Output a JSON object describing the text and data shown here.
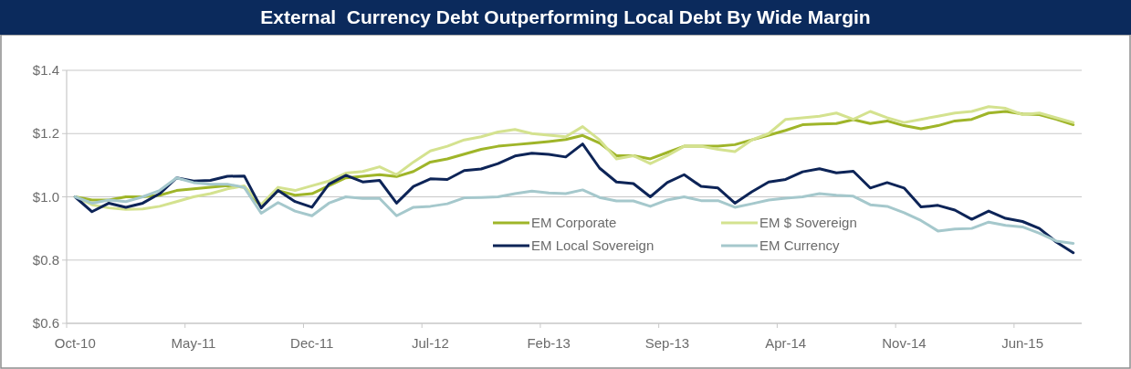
{
  "chart_data": {
    "type": "line",
    "title": "External  Currency Debt Outperforming Local Debt By Wide Margin",
    "categories": [
      "Oct-10",
      null,
      null,
      null,
      null,
      null,
      null,
      "May-11",
      null,
      null,
      null,
      null,
      null,
      null,
      "Dec-11",
      null,
      null,
      null,
      null,
      null,
      null,
      "Jul-12",
      null,
      null,
      null,
      null,
      null,
      null,
      "Feb-13",
      null,
      null,
      null,
      null,
      null,
      null,
      "Sep-13",
      null,
      null,
      null,
      null,
      null,
      null,
      "Apr-14",
      null,
      null,
      null,
      null,
      null,
      null,
      "Nov-14",
      null,
      null,
      null,
      null,
      null,
      null,
      "Jun-15",
      null,
      null,
      null
    ],
    "series": [
      {
        "name": "EM Corporate",
        "color": "#9fb529",
        "values": [
          1.0,
          0.99,
          0.99,
          1.0,
          1.0,
          1.005,
          1.02,
          1.025,
          1.03,
          1.035,
          1.03,
          0.97,
          1.02,
          1.005,
          1.01,
          1.035,
          1.06,
          1.065,
          1.07,
          1.064,
          1.08,
          1.11,
          1.12,
          1.135,
          1.15,
          1.16,
          1.165,
          1.17,
          1.175,
          1.181,
          1.194,
          1.17,
          1.13,
          1.13,
          1.12,
          1.14,
          1.16,
          1.16,
          1.16,
          1.165,
          1.18,
          1.195,
          1.21,
          1.228,
          1.23,
          1.232,
          1.244,
          1.232,
          1.24,
          1.225,
          1.215,
          1.225,
          1.24,
          1.245,
          1.265,
          1.27,
          1.262,
          1.26,
          1.245,
          1.228
        ]
      },
      {
        "name": "EM $ Sovereign",
        "color": "#d4e28f",
        "values": [
          1.0,
          0.975,
          0.965,
          0.96,
          0.962,
          0.97,
          0.985,
          1.0,
          1.01,
          1.025,
          1.035,
          0.975,
          1.03,
          1.02,
          1.035,
          1.05,
          1.075,
          1.08,
          1.095,
          1.07,
          1.11,
          1.145,
          1.16,
          1.18,
          1.19,
          1.205,
          1.213,
          1.2,
          1.195,
          1.19,
          1.222,
          1.18,
          1.12,
          1.13,
          1.105,
          1.13,
          1.16,
          1.16,
          1.15,
          1.143,
          1.18,
          1.2,
          1.245,
          1.25,
          1.255,
          1.265,
          1.245,
          1.27,
          1.25,
          1.235,
          1.245,
          1.255,
          1.265,
          1.27,
          1.285,
          1.28,
          1.26,
          1.265,
          1.25,
          1.235
        ]
      },
      {
        "name": "EM Local Sovereign",
        "color": "#0d2457",
        "values": [
          1.0,
          0.953,
          0.98,
          0.967,
          0.98,
          1.01,
          1.06,
          1.05,
          1.052,
          1.065,
          1.066,
          0.965,
          1.02,
          0.985,
          0.967,
          1.04,
          1.068,
          1.047,
          1.052,
          0.98,
          1.033,
          1.057,
          1.055,
          1.083,
          1.088,
          1.105,
          1.129,
          1.138,
          1.134,
          1.126,
          1.167,
          1.091,
          1.047,
          1.042,
          1.0,
          1.045,
          1.07,
          1.033,
          1.028,
          0.98,
          1.016,
          1.047,
          1.055,
          1.079,
          1.089,
          1.076,
          1.081,
          1.028,
          1.045,
          1.028,
          0.968,
          0.973,
          0.958,
          0.929,
          0.955,
          0.932,
          0.922,
          0.9,
          0.857,
          0.823
        ]
      },
      {
        "name": "EM Currency",
        "color": "#a5c8cc",
        "values": [
          1.0,
          0.98,
          0.99,
          0.985,
          1.0,
          1.02,
          1.06,
          1.045,
          1.04,
          1.04,
          1.03,
          0.948,
          0.982,
          0.955,
          0.94,
          0.98,
          1.0,
          0.995,
          0.995,
          0.94,
          0.967,
          0.97,
          0.978,
          0.997,
          0.998,
          1.0,
          1.01,
          1.018,
          1.012,
          1.01,
          1.022,
          0.998,
          0.987,
          0.987,
          0.97,
          0.99,
          1.0,
          0.988,
          0.988,
          0.967,
          0.978,
          0.99,
          0.996,
          1.0,
          1.01,
          1.005,
          1.002,
          0.975,
          0.97,
          0.95,
          0.925,
          0.892,
          0.898,
          0.9,
          0.92,
          0.91,
          0.905,
          0.885,
          0.86,
          0.853
        ]
      }
    ],
    "ylim": [
      0.6,
      1.4
    ],
    "yticks": [
      {
        "value": 0.6,
        "label": "$0.6"
      },
      {
        "value": 0.8,
        "label": "$0.8"
      },
      {
        "value": 1.0,
        "label": "$1.0"
      },
      {
        "value": 1.2,
        "label": "$1.2"
      },
      {
        "value": 1.4,
        "label": "$1.4"
      }
    ],
    "grid": "y",
    "legend": "bottom",
    "marker": "none",
    "line_style": "solid"
  }
}
